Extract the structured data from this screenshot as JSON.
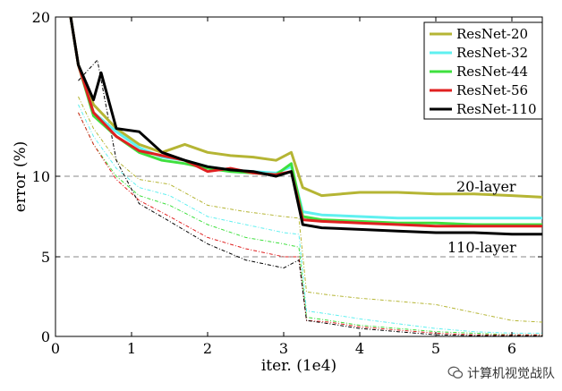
{
  "chart_data": {
    "type": "line",
    "xlabel": "iter. (1e4)",
    "ylabel": "error (%)",
    "xlim": [
      0,
      6.4
    ],
    "ylim": [
      0,
      20
    ],
    "xticks": [
      "0",
      "1",
      "2",
      "3",
      "4",
      "5",
      "6"
    ],
    "yticks": [
      "0",
      "5",
      "10",
      "20"
    ],
    "yticks_values": [
      0,
      5,
      10,
      20
    ],
    "grid": "dashed horizontal at 5 and 10",
    "legend_position": "top-right",
    "annotations": [
      {
        "text": "20-layer"
      },
      {
        "text": "110-layer"
      }
    ],
    "series": [
      {
        "name": "ResNet-20",
        "color": "#b5b534",
        "test": [
          [
            0.2,
            20
          ],
          [
            0.3,
            17
          ],
          [
            0.5,
            14.5
          ],
          [
            0.8,
            13
          ],
          [
            1.1,
            12
          ],
          [
            1.4,
            11.5
          ],
          [
            1.7,
            12
          ],
          [
            2.0,
            11.5
          ],
          [
            2.3,
            11.3
          ],
          [
            2.6,
            11.2
          ],
          [
            2.9,
            11
          ],
          [
            3.1,
            11.5
          ],
          [
            3.25,
            9.3
          ],
          [
            3.5,
            8.8
          ],
          [
            4.0,
            9
          ],
          [
            4.5,
            9
          ],
          [
            5.0,
            8.9
          ],
          [
            5.5,
            8.9
          ],
          [
            6.0,
            8.8
          ],
          [
            6.4,
            8.7
          ]
        ],
        "train": [
          [
            0.3,
            15
          ],
          [
            0.5,
            13
          ],
          [
            0.8,
            11
          ],
          [
            1.1,
            9.8
          ],
          [
            1.5,
            9.5
          ],
          [
            2.0,
            8.2
          ],
          [
            2.5,
            7.8
          ],
          [
            3.0,
            7.5
          ],
          [
            3.2,
            7.4
          ],
          [
            3.3,
            2.8
          ],
          [
            3.6,
            2.6
          ],
          [
            4.0,
            2.4
          ],
          [
            4.5,
            2.2
          ],
          [
            5.0,
            2.0
          ],
          [
            5.5,
            1.5
          ],
          [
            6.0,
            1.0
          ],
          [
            6.4,
            0.9
          ]
        ]
      },
      {
        "name": "ResNet-32",
        "color": "#5ff0f0",
        "test": [
          [
            0.2,
            20
          ],
          [
            0.3,
            17
          ],
          [
            0.5,
            14
          ],
          [
            0.8,
            12.8
          ],
          [
            1.1,
            11.8
          ],
          [
            1.4,
            11.2
          ],
          [
            1.7,
            11
          ],
          [
            2.0,
            10.6
          ],
          [
            2.3,
            10.4
          ],
          [
            2.6,
            10.3
          ],
          [
            2.9,
            10.2
          ],
          [
            3.1,
            10.6
          ],
          [
            3.25,
            7.8
          ],
          [
            3.5,
            7.6
          ],
          [
            4.0,
            7.5
          ],
          [
            4.5,
            7.4
          ],
          [
            5.0,
            7.4
          ],
          [
            5.5,
            7.4
          ],
          [
            6.0,
            7.4
          ],
          [
            6.4,
            7.4
          ]
        ],
        "train": [
          [
            0.3,
            14.5
          ],
          [
            0.5,
            12.5
          ],
          [
            0.8,
            10.5
          ],
          [
            1.1,
            9.3
          ],
          [
            1.5,
            8.8
          ],
          [
            2.0,
            7.5
          ],
          [
            2.5,
            7
          ],
          [
            3.0,
            6.5
          ],
          [
            3.2,
            6.4
          ],
          [
            3.3,
            1.6
          ],
          [
            3.6,
            1.4
          ],
          [
            4.0,
            1.1
          ],
          [
            4.5,
            0.8
          ],
          [
            5.0,
            0.5
          ],
          [
            5.5,
            0.3
          ],
          [
            6.0,
            0.2
          ],
          [
            6.4,
            0.2
          ]
        ]
      },
      {
        "name": "ResNet-44",
        "color": "#3ee03e",
        "test": [
          [
            0.2,
            20
          ],
          [
            0.3,
            17
          ],
          [
            0.5,
            13.8
          ],
          [
            0.8,
            12.5
          ],
          [
            1.1,
            11.5
          ],
          [
            1.4,
            11
          ],
          [
            1.7,
            10.8
          ],
          [
            2.0,
            10.5
          ],
          [
            2.3,
            10.3
          ],
          [
            2.6,
            10.2
          ],
          [
            2.9,
            10.1
          ],
          [
            3.1,
            10.8
          ],
          [
            3.25,
            7.5
          ],
          [
            3.5,
            7.3
          ],
          [
            4.0,
            7.2
          ],
          [
            4.5,
            7.1
          ],
          [
            5.0,
            7.1
          ],
          [
            5.5,
            7.0
          ],
          [
            6.0,
            7.0
          ],
          [
            6.4,
            7.0
          ]
        ],
        "train": [
          [
            0.3,
            14
          ],
          [
            0.5,
            12
          ],
          [
            0.8,
            10
          ],
          [
            1.1,
            8.8
          ],
          [
            1.5,
            8.2
          ],
          [
            2.0,
            7
          ],
          [
            2.5,
            6.2
          ],
          [
            3.0,
            5.8
          ],
          [
            3.2,
            5.6
          ],
          [
            3.3,
            1.2
          ],
          [
            3.6,
            1.0
          ],
          [
            4.0,
            0.7
          ],
          [
            4.5,
            0.5
          ],
          [
            5.0,
            0.3
          ],
          [
            5.5,
            0.2
          ],
          [
            6.0,
            0.1
          ],
          [
            6.4,
            0.1
          ]
        ]
      },
      {
        "name": "ResNet-56",
        "color": "#e02020",
        "test": [
          [
            0.2,
            20
          ],
          [
            0.3,
            17
          ],
          [
            0.5,
            14
          ],
          [
            0.8,
            12.5
          ],
          [
            1.1,
            11.6
          ],
          [
            1.4,
            11.3
          ],
          [
            1.7,
            11
          ],
          [
            2.0,
            10.3
          ],
          [
            2.3,
            10.5
          ],
          [
            2.6,
            10.2
          ],
          [
            2.9,
            10.1
          ],
          [
            3.1,
            10.3
          ],
          [
            3.25,
            7.3
          ],
          [
            3.5,
            7.2
          ],
          [
            4.0,
            7.1
          ],
          [
            4.5,
            7.0
          ],
          [
            5.0,
            6.9
          ],
          [
            5.5,
            6.9
          ],
          [
            6.0,
            6.9
          ],
          [
            6.4,
            6.9
          ]
        ],
        "train": [
          [
            0.3,
            14
          ],
          [
            0.5,
            12
          ],
          [
            0.8,
            9.8
          ],
          [
            1.1,
            8.5
          ],
          [
            1.5,
            7.5
          ],
          [
            2.0,
            6.2
          ],
          [
            2.5,
            5.5
          ],
          [
            3.0,
            5
          ],
          [
            3.2,
            5.0
          ],
          [
            3.3,
            1.0
          ],
          [
            3.6,
            0.9
          ],
          [
            4.0,
            0.6
          ],
          [
            4.5,
            0.4
          ],
          [
            5.0,
            0.2
          ],
          [
            5.5,
            0.1
          ],
          [
            6.0,
            0.1
          ],
          [
            6.4,
            0.1
          ]
        ]
      },
      {
        "name": "ResNet-110",
        "color": "#000000",
        "test": [
          [
            0.2,
            20
          ],
          [
            0.3,
            17
          ],
          [
            0.5,
            14.8
          ],
          [
            0.6,
            16.5
          ],
          [
            0.8,
            13
          ],
          [
            1.1,
            12.8
          ],
          [
            1.4,
            11.5
          ],
          [
            1.7,
            11
          ],
          [
            2.0,
            10.6
          ],
          [
            2.3,
            10.4
          ],
          [
            2.6,
            10.3
          ],
          [
            2.9,
            10.0
          ],
          [
            3.1,
            10.3
          ],
          [
            3.25,
            7.0
          ],
          [
            3.5,
            6.8
          ],
          [
            4.0,
            6.7
          ],
          [
            4.5,
            6.6
          ],
          [
            5.0,
            6.5
          ],
          [
            5.5,
            6.5
          ],
          [
            6.0,
            6.4
          ],
          [
            6.4,
            6.4
          ]
        ],
        "train": [
          [
            0.3,
            16
          ],
          [
            0.55,
            17.3
          ],
          [
            0.8,
            11
          ],
          [
            1.1,
            8.3
          ],
          [
            1.5,
            7.2
          ],
          [
            2.0,
            5.8
          ],
          [
            2.5,
            4.8
          ],
          [
            3.0,
            4.3
          ],
          [
            3.2,
            4.8
          ],
          [
            3.3,
            1.0
          ],
          [
            3.6,
            0.8
          ],
          [
            4.0,
            0.5
          ],
          [
            4.5,
            0.3
          ],
          [
            5.0,
            0.1
          ],
          [
            5.5,
            0.05
          ],
          [
            6.0,
            0.05
          ],
          [
            6.4,
            0.05
          ]
        ]
      }
    ]
  },
  "watermark": {
    "text": "计算机视觉战队",
    "icon": "wechat-icon"
  }
}
